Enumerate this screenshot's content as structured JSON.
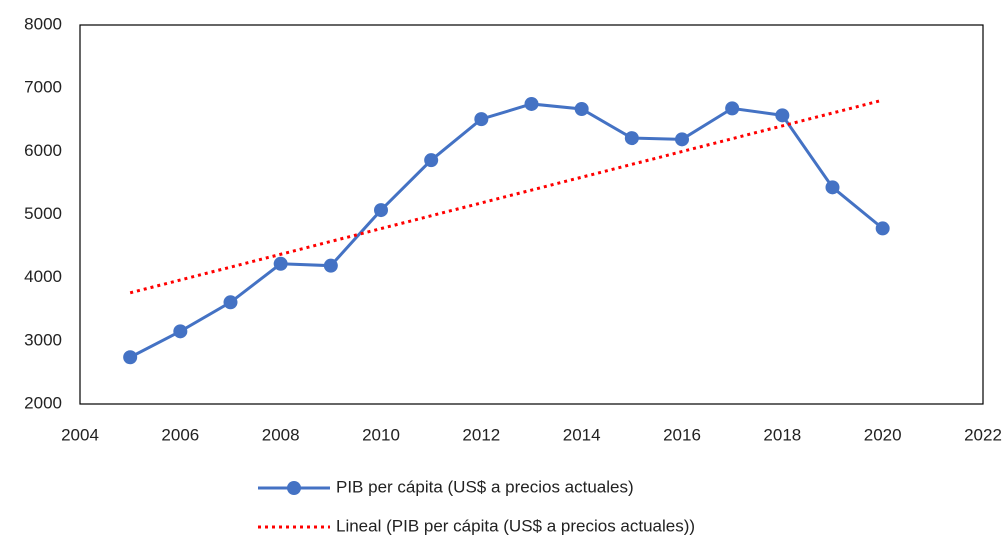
{
  "chart_data": {
    "type": "line",
    "xlim": [
      2004,
      2022
    ],
    "xticks": [
      2004,
      2006,
      2008,
      2010,
      2012,
      2014,
      2016,
      2018,
      2020,
      2022
    ],
    "ylim": [
      2000,
      8000
    ],
    "yticks": [
      2000,
      3000,
      4000,
      5000,
      6000,
      7000,
      8000
    ],
    "grid": false,
    "legend": "bottom",
    "series": [
      {
        "name": "PIB per cápita (US$ a precios actuales)",
        "color": "#4472c4",
        "style": "solid",
        "markers": true,
        "x": [
          2005,
          2006,
          2007,
          2008,
          2009,
          2010,
          2011,
          2012,
          2013,
          2014,
          2015,
          2016,
          2017,
          2018,
          2019,
          2020
        ],
        "values": [
          2740,
          3150,
          3610,
          4220,
          4190,
          5070,
          5860,
          6510,
          6750,
          6670,
          6210,
          6190,
          6680,
          6570,
          5430,
          4780
        ]
      },
      {
        "name": "Lineal (PIB per cápita (US$ a precios actuales))",
        "color": "#ff0000",
        "style": "dotted",
        "markers": false,
        "x": [
          2005,
          2020
        ],
        "values": [
          3760,
          6810
        ]
      }
    ]
  }
}
